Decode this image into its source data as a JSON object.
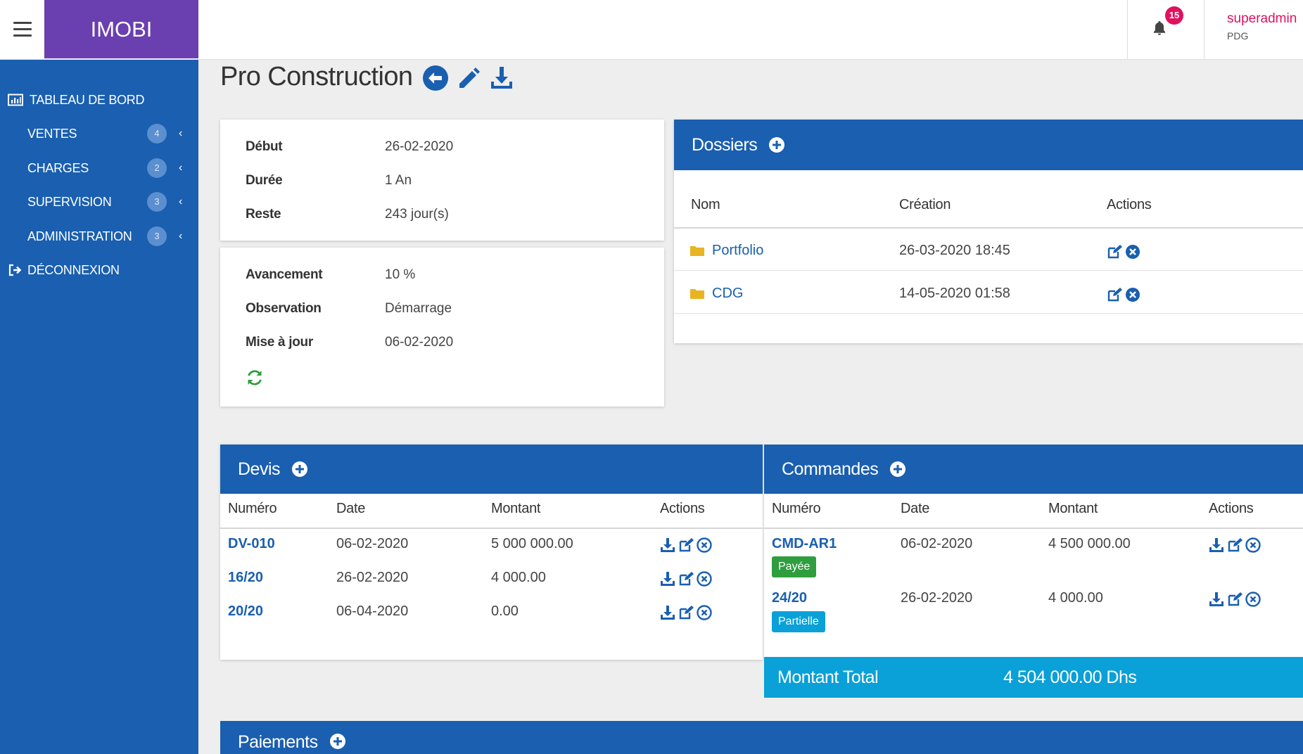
{
  "app": {
    "brand": "IMOBI"
  },
  "header": {
    "notification_count": "15",
    "user_name": "superadmin",
    "user_role": "PDG"
  },
  "sidebar": {
    "items": [
      {
        "label": "TABLEAU DE BORD",
        "icon": "bar-chart-icon",
        "badge": null
      },
      {
        "label": "VENTES",
        "icon": null,
        "badge": "4"
      },
      {
        "label": "CHARGES",
        "icon": null,
        "badge": "2"
      },
      {
        "label": "SUPERVISION",
        "icon": null,
        "badge": "3"
      },
      {
        "label": "ADMINISTRATION",
        "icon": null,
        "badge": "3"
      },
      {
        "label": "DÉCONNEXION",
        "icon": "sign-out-icon",
        "badge": null
      }
    ]
  },
  "page": {
    "title": "Pro Construction"
  },
  "info1": {
    "rows": [
      {
        "key": "Début",
        "value": "26-02-2020"
      },
      {
        "key": "Durée",
        "value": "1 An"
      },
      {
        "key": "Reste",
        "value": "243 jour(s)"
      }
    ]
  },
  "info2": {
    "rows": [
      {
        "key": "Avancement",
        "value": "10 %"
      },
      {
        "key": "Observation",
        "value": "Démarrage"
      },
      {
        "key": "Mise à jour",
        "value": "06-02-2020"
      }
    ]
  },
  "dossiers": {
    "title": "Dossiers",
    "columns": [
      "Nom",
      "Création",
      "Actions"
    ],
    "rows": [
      {
        "name": "Portfolio",
        "created": "26-03-2020 18:45"
      },
      {
        "name": "CDG",
        "created": "14-05-2020 01:58"
      }
    ]
  },
  "devis": {
    "title": "Devis",
    "columns": [
      "Numéro",
      "Date",
      "Montant",
      "Actions"
    ],
    "rows": [
      {
        "num": "DV-010",
        "date": "06-02-2020",
        "amount": "5 000 000.00"
      },
      {
        "num": "16/20",
        "date": "26-02-2020",
        "amount": "4 000.00"
      },
      {
        "num": "20/20",
        "date": "06-04-2020",
        "amount": "0.00"
      }
    ]
  },
  "commandes": {
    "title": "Commandes",
    "columns": [
      "Numéro",
      "Date",
      "Montant",
      "Actions"
    ],
    "rows": [
      {
        "num": "CMD-AR1",
        "status": "Payée",
        "status_color": "#2e9e3e",
        "date": "06-02-2020",
        "amount": "4 500 000.00"
      },
      {
        "num": "24/20",
        "status": "Partielle",
        "status_color": "#0aa0d8",
        "date": "26-02-2020",
        "amount": "4 000.00"
      }
    ],
    "total_label": "Montant Total",
    "total_value": "4 504 000.00 Dhs"
  },
  "paiements": {
    "title": "Paiements"
  },
  "colors": {
    "primary": "#1a5fb0",
    "brand": "#6a3fb0",
    "accent": "#e0115f",
    "total": "#0aa0d8",
    "folder": "#e8b422",
    "refresh": "#2e9e3e"
  }
}
